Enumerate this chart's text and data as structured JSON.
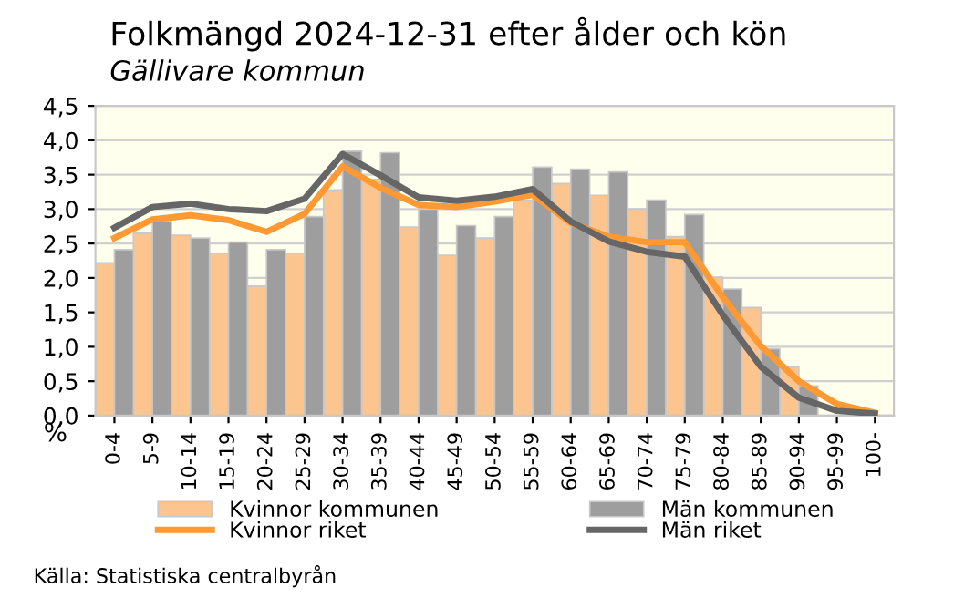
{
  "chart_data": {
    "type": "bar",
    "title": "Folkmängd 2024-12-31 efter ålder och kön",
    "subtitle": "Gällivare kommun",
    "ylabel": "%",
    "categories": [
      "0-4",
      "5-9",
      "10-14",
      "15-19",
      "20-24",
      "25-29",
      "30-34",
      "35-39",
      "40-44",
      "45-49",
      "50-54",
      "55-59",
      "60-64",
      "65-69",
      "70-74",
      "75-79",
      "80-84",
      "85-89",
      "90-94",
      "95-99",
      "100-"
    ],
    "series": [
      {
        "name": "Kvinnor kommunen",
        "color": "#fcc48e",
        "values": [
          2.22,
          2.65,
          2.62,
          2.36,
          1.88,
          2.36,
          3.28,
          3.43,
          2.74,
          2.33,
          2.58,
          3.13,
          3.37,
          3.2,
          3.0,
          2.6,
          2.01,
          1.57,
          0.71,
          null,
          null
        ]
      },
      {
        "name": "Män kommunen",
        "color": "#9e9e9e",
        "values": [
          2.41,
          2.82,
          2.58,
          2.52,
          2.41,
          2.89,
          3.84,
          3.82,
          3.0,
          2.76,
          2.89,
          3.61,
          3.58,
          3.54,
          3.13,
          2.92,
          1.84,
          0.97,
          0.43,
          null,
          null
        ]
      },
      {
        "name": "Kvinnor riket",
        "type": "line",
        "color": "#ff9933",
        "values": [
          2.58,
          2.85,
          2.91,
          2.84,
          2.67,
          2.93,
          3.62,
          3.31,
          3.06,
          3.03,
          3.11,
          3.21,
          2.8,
          2.6,
          2.52,
          2.52,
          1.72,
          1.01,
          0.5,
          0.17,
          0.04
        ]
      },
      {
        "name": "Män riket",
        "type": "line",
        "color": "#666666",
        "values": [
          2.73,
          3.03,
          3.08,
          3.0,
          2.97,
          3.15,
          3.8,
          3.49,
          3.17,
          3.12,
          3.18,
          3.29,
          2.82,
          2.53,
          2.38,
          2.31,
          1.46,
          0.71,
          0.26,
          0.07,
          0.03
        ]
      }
    ],
    "ylim": [
      0,
      4.5
    ],
    "yticks": [
      {
        "value": 0,
        "label": "0,0"
      },
      {
        "value": 0.5,
        "label": "0,5"
      },
      {
        "value": 1,
        "label": "1,0"
      },
      {
        "value": 1.5,
        "label": "1,5"
      },
      {
        "value": 2,
        "label": "2,0"
      },
      {
        "value": 2.5,
        "label": "2,5"
      },
      {
        "value": 3,
        "label": "3,0"
      },
      {
        "value": 3.5,
        "label": "3,5"
      },
      {
        "value": 4,
        "label": "4,0"
      },
      {
        "value": 4.5,
        "label": "4,5"
      }
    ],
    "grid": "y",
    "legend": "bottom",
    "marker": "none",
    "line_style": "solid",
    "annotations": [
      "Källa: Statistiska centralbyrån"
    ]
  }
}
